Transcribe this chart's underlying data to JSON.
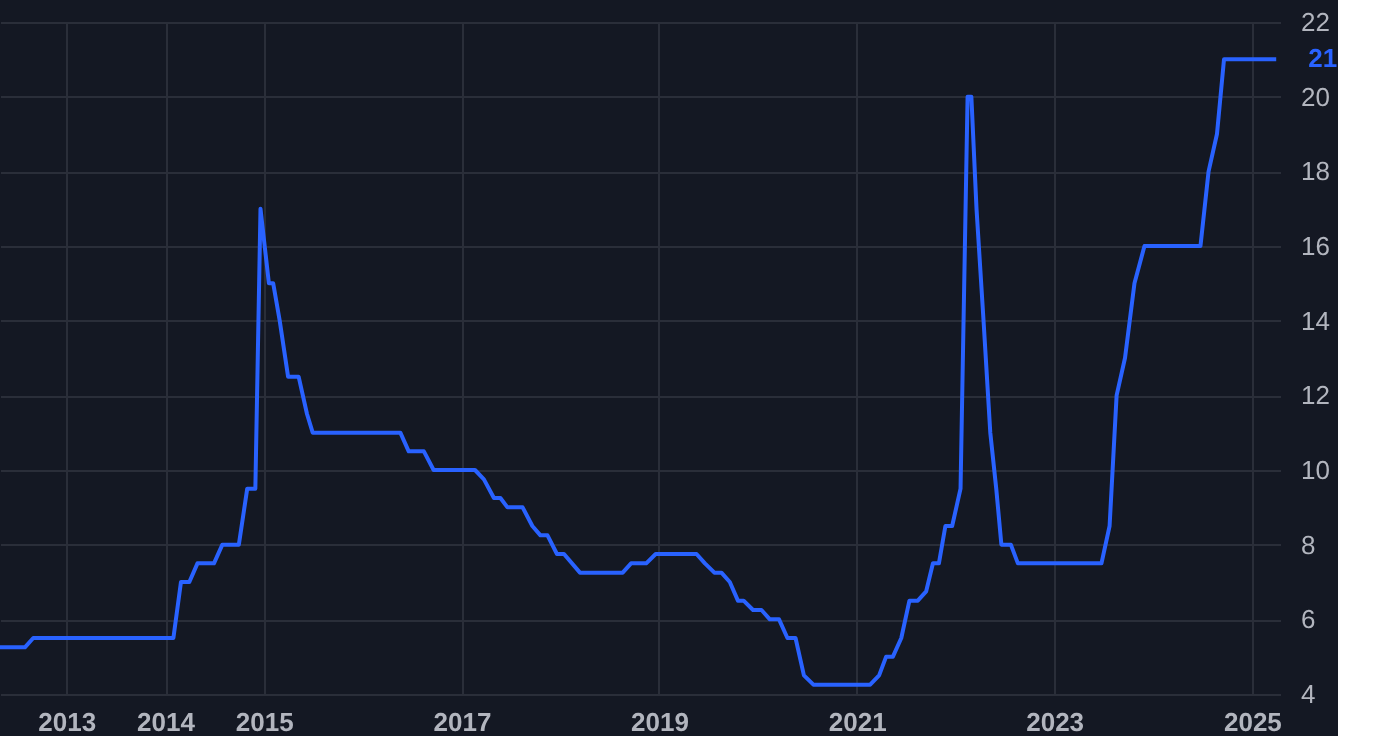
{
  "chart_data": {
    "type": "line",
    "xlim": [
      "2012-05-01",
      "2025-04-15"
    ],
    "ylim": [
      4,
      22
    ],
    "yticks": [
      4,
      6,
      8,
      10,
      12,
      14,
      16,
      18,
      20,
      22
    ],
    "xticks": [
      {
        "value": "2013-01-01",
        "label": "2013"
      },
      {
        "value": "2014-01-01",
        "label": "2014"
      },
      {
        "value": "2015-01-01",
        "label": "2015"
      },
      {
        "value": "2017-01-01",
        "label": "2017"
      },
      {
        "value": "2019-01-01",
        "label": "2019"
      },
      {
        "value": "2021-01-01",
        "label": "2021"
      },
      {
        "value": "2023-01-01",
        "label": "2023"
      },
      {
        "value": "2025-01-01",
        "label": "2025"
      }
    ],
    "grid": true,
    "marker": "none",
    "line_style": "solid",
    "annotations": [
      {
        "text": "21",
        "x": "2025-04-01",
        "y": 21
      }
    ],
    "series": [
      {
        "color": "#2962ff",
        "x": [
          "2012-05-01",
          "2012-08-01",
          "2012-09-01",
          "2014-02-01",
          "2014-03-01",
          "2014-04-01",
          "2014-05-01",
          "2014-06-01",
          "2014-07-01",
          "2014-08-01",
          "2014-10-01",
          "2014-11-01",
          "2014-12-01",
          "2014-12-20",
          "2015-01-20",
          "2015-02-05",
          "2015-03-01",
          "2015-04-01",
          "2015-05-10",
          "2015-06-10",
          "2015-07-01",
          "2015-08-01",
          "2016-05-20",
          "2016-06-20",
          "2016-08-15",
          "2016-09-20",
          "2017-02-20",
          "2017-03-25",
          "2017-05-01",
          "2017-05-25",
          "2017-06-20",
          "2017-08-15",
          "2017-09-20",
          "2017-10-20",
          "2017-11-15",
          "2017-12-20",
          "2018-01-15",
          "2018-03-15",
          "2018-08-20",
          "2018-09-20",
          "2018-11-15",
          "2018-12-20",
          "2019-05-20",
          "2019-06-20",
          "2019-07-25",
          "2019-08-20",
          "2019-09-20",
          "2019-10-20",
          "2019-11-10",
          "2019-12-15",
          "2020-01-15",
          "2020-02-15",
          "2020-03-20",
          "2020-04-20",
          "2020-05-20",
          "2020-06-20",
          "2020-07-25",
          "2021-02-20",
          "2021-03-25",
          "2021-04-20",
          "2021-05-15",
          "2021-06-15",
          "2021-07-15",
          "2021-08-15",
          "2021-09-15",
          "2021-10-10",
          "2021-11-01",
          "2021-11-25",
          "2021-12-20",
          "2022-01-20",
          "2022-02-15",
          "2022-03-01",
          "2022-03-20",
          "2022-04-15",
          "2022-05-10",
          "2022-06-01",
          "2022-06-20",
          "2022-07-25",
          "2022-08-20",
          "2022-09-20",
          "2023-06-25",
          "2023-07-25",
          "2023-08-20",
          "2023-09-20",
          "2023-10-25",
          "2023-12-01",
          "2023-12-20",
          "2024-06-25",
          "2024-07-25",
          "2024-08-25",
          "2024-09-20",
          "2024-10-25",
          "2025-04-01"
        ],
        "values": [
          5.25,
          5.25,
          5.5,
          5.5,
          7,
          7,
          7.5,
          7.5,
          7.5,
          8,
          8,
          9.5,
          9.5,
          17,
          15,
          15,
          14,
          12.5,
          12.5,
          11.5,
          11,
          11,
          11,
          10.5,
          10.5,
          10,
          10,
          9.75,
          9.25,
          9.25,
          9,
          9,
          8.5,
          8.25,
          8.25,
          7.75,
          7.75,
          7.25,
          7.25,
          7.5,
          7.5,
          7.75,
          7.75,
          7.5,
          7.25,
          7.25,
          7,
          6.5,
          6.5,
          6.25,
          6.25,
          6,
          6,
          5.5,
          5.5,
          4.5,
          4.25,
          4.25,
          4.5,
          5,
          5,
          5.5,
          6.5,
          6.5,
          6.75,
          7.5,
          7.5,
          8.5,
          8.5,
          9.5,
          20,
          20,
          17,
          14,
          11,
          9.5,
          8,
          8,
          7.5,
          7.5,
          7.5,
          8.5,
          12,
          13,
          15,
          16,
          16,
          16,
          18,
          19,
          21,
          21,
          21
        ]
      }
    ]
  }
}
